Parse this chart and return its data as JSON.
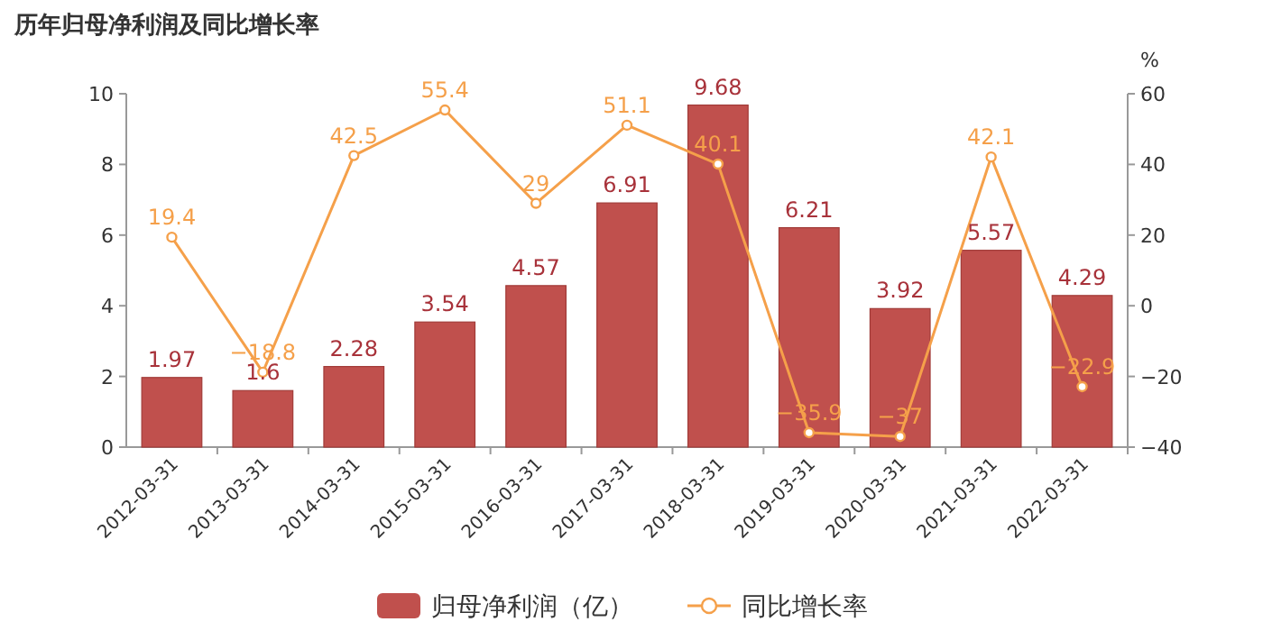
{
  "chart_data": {
    "type": "bar",
    "title": "历年归母净利润及同比增长率",
    "y2label": "%",
    "categories": [
      "2012-03-31",
      "2013-03-31",
      "2014-03-31",
      "2015-03-31",
      "2016-03-31",
      "2017-03-31",
      "2018-03-31",
      "2019-03-31",
      "2020-03-31",
      "2021-03-31",
      "2022-03-31"
    ],
    "series": [
      {
        "name": "归母净利润（亿）",
        "color": "#c0504d",
        "values": [
          1.97,
          1.6,
          2.28,
          3.54,
          4.57,
          6.91,
          9.68,
          6.21,
          3.92,
          5.57,
          4.29
        ]
      },
      {
        "name": "同比增长率",
        "type": "line",
        "axis": "y2",
        "marker": "circle",
        "color": "#f5a04a",
        "values": [
          19.4,
          -18.8,
          42.5,
          55.4,
          29,
          51.1,
          40.1,
          -35.9,
          -37,
          42.1,
          -22.9
        ]
      }
    ],
    "ylim": [
      0,
      10
    ],
    "yticks": [
      0,
      2,
      4,
      6,
      8,
      10
    ],
    "y2lim": [
      -40,
      60
    ],
    "y2ticks": [
      -40,
      -20,
      0,
      20,
      40,
      60
    ],
    "data_labels": true,
    "legend": "bottom"
  }
}
